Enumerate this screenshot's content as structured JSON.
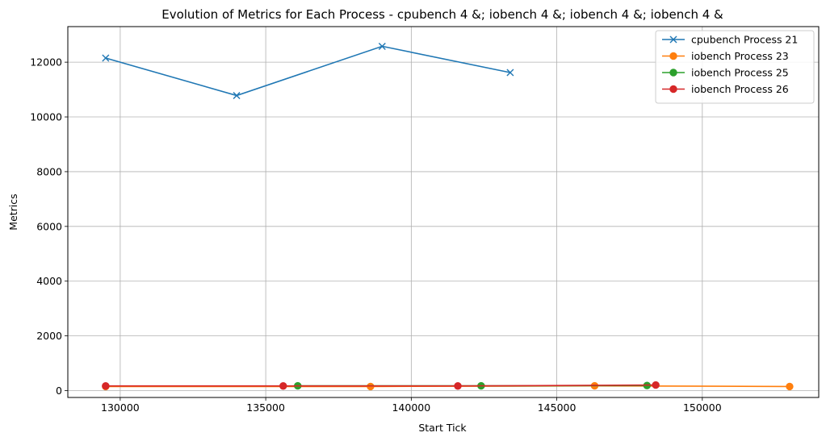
{
  "chart_data": {
    "type": "line",
    "title": "Evolution of Metrics for Each Process - cpubench 4 &; iobench 4 &; iobench 4 &; iobench 4 &",
    "xlabel": "Start Tick",
    "ylabel": "Metrics",
    "xlim": [
      128200,
      154000
    ],
    "ylim": [
      -250,
      13300
    ],
    "xticks": [
      130000,
      135000,
      140000,
      145000,
      150000
    ],
    "yticks": [
      0,
      2000,
      4000,
      6000,
      8000,
      10000,
      12000
    ],
    "grid": true,
    "legend_position": "top-right",
    "series": [
      {
        "name": "cpubench Process 21",
        "color": "#1f77b4",
        "marker": "x",
        "x": [
          129500,
          134000,
          139000,
          143400
        ],
        "y": [
          12150,
          10780,
          12580,
          11620
        ]
      },
      {
        "name": "iobench Process 23",
        "color": "#ff7f0e",
        "marker": "o",
        "x": [
          129500,
          138600,
          146300,
          153000
        ],
        "y": [
          150,
          150,
          175,
          150
        ]
      },
      {
        "name": "iobench Process 25",
        "color": "#2ca02c",
        "marker": "o",
        "x": [
          136100,
          142400,
          148100
        ],
        "y": [
          175,
          175,
          185
        ]
      },
      {
        "name": "iobench Process 26",
        "color": "#d62728",
        "marker": "o",
        "x": [
          129500,
          135600,
          141600,
          148400
        ],
        "y": [
          170,
          170,
          170,
          205
        ]
      }
    ]
  }
}
